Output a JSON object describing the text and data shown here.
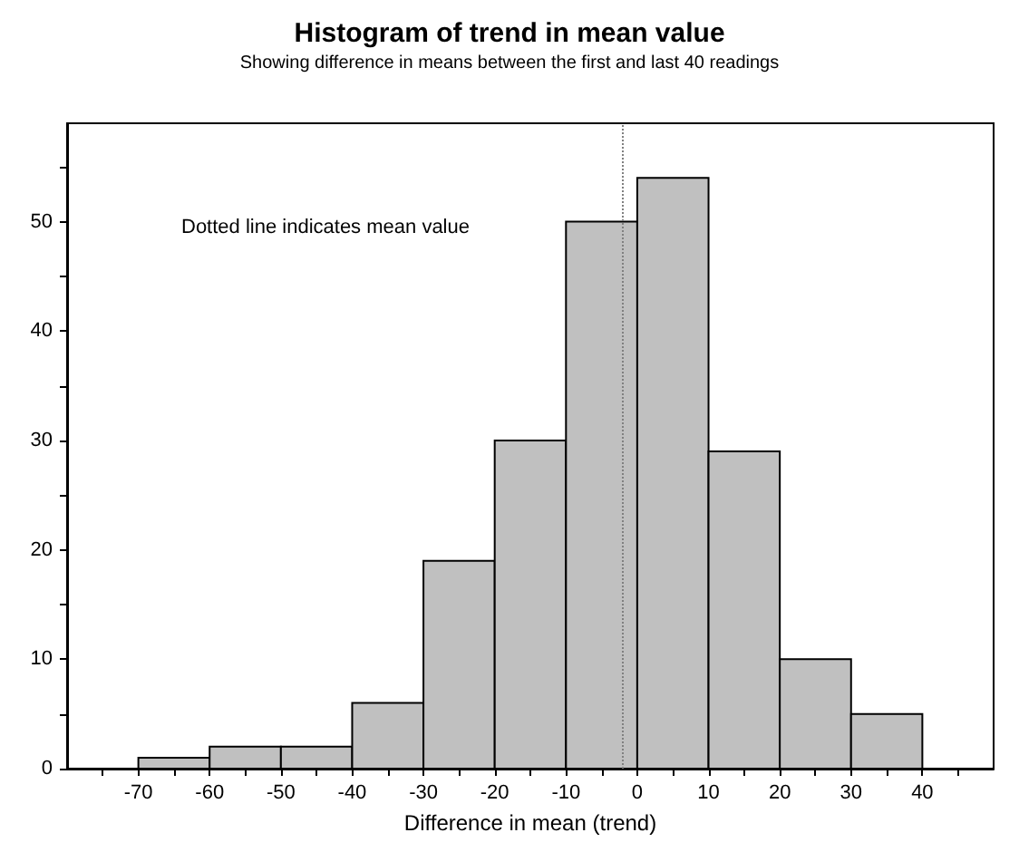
{
  "chart_data": {
    "type": "histogram",
    "title": "Histogram of trend in mean value",
    "subtitle": "Showing difference in means between the first and last 40 readings",
    "xlabel": "Difference in mean (trend)",
    "annotations": [
      "Dotted line indicates mean value"
    ],
    "bins": [
      -70,
      -60,
      -50,
      -40,
      -30,
      -20,
      -10,
      0,
      10,
      20,
      30,
      40
    ],
    "values": [
      1,
      2,
      2,
      6,
      19,
      30,
      50,
      54,
      29,
      10,
      5
    ],
    "color": "#c0c0c0",
    "xlim": [
      -80,
      50
    ],
    "xticks": [
      {
        "value": -75,
        "label": null
      },
      -70,
      {
        "value": -65,
        "label": null
      },
      -60,
      {
        "value": -55,
        "label": null
      },
      -50,
      {
        "value": -45,
        "label": null
      },
      -40,
      {
        "value": -35,
        "label": null
      },
      -30,
      {
        "value": -25,
        "label": null
      },
      -20,
      {
        "value": -15,
        "label": null
      },
      -10,
      {
        "value": -5,
        "label": null
      },
      0,
      {
        "value": 5,
        "label": null
      },
      10,
      {
        "value": 15,
        "label": null
      },
      20,
      {
        "value": 25,
        "label": null
      },
      30,
      {
        "value": 35,
        "label": null
      },
      40,
      {
        "value": 45,
        "label": null
      }
    ],
    "ylim": [
      0,
      59
    ],
    "yticks": [
      0,
      {
        "value": 5,
        "label": null
      },
      10,
      {
        "value": 15,
        "label": null
      },
      20,
      {
        "value": 25,
        "label": null
      },
      30,
      {
        "value": 35,
        "label": null
      },
      40,
      {
        "value": 45,
        "label": null
      },
      50,
      {
        "value": 55,
        "label": null
      }
    ],
    "ref_lines": [
      {
        "axis": "x",
        "value": -2,
        "line_style": "dotted",
        "color": "#808080"
      }
    ]
  }
}
